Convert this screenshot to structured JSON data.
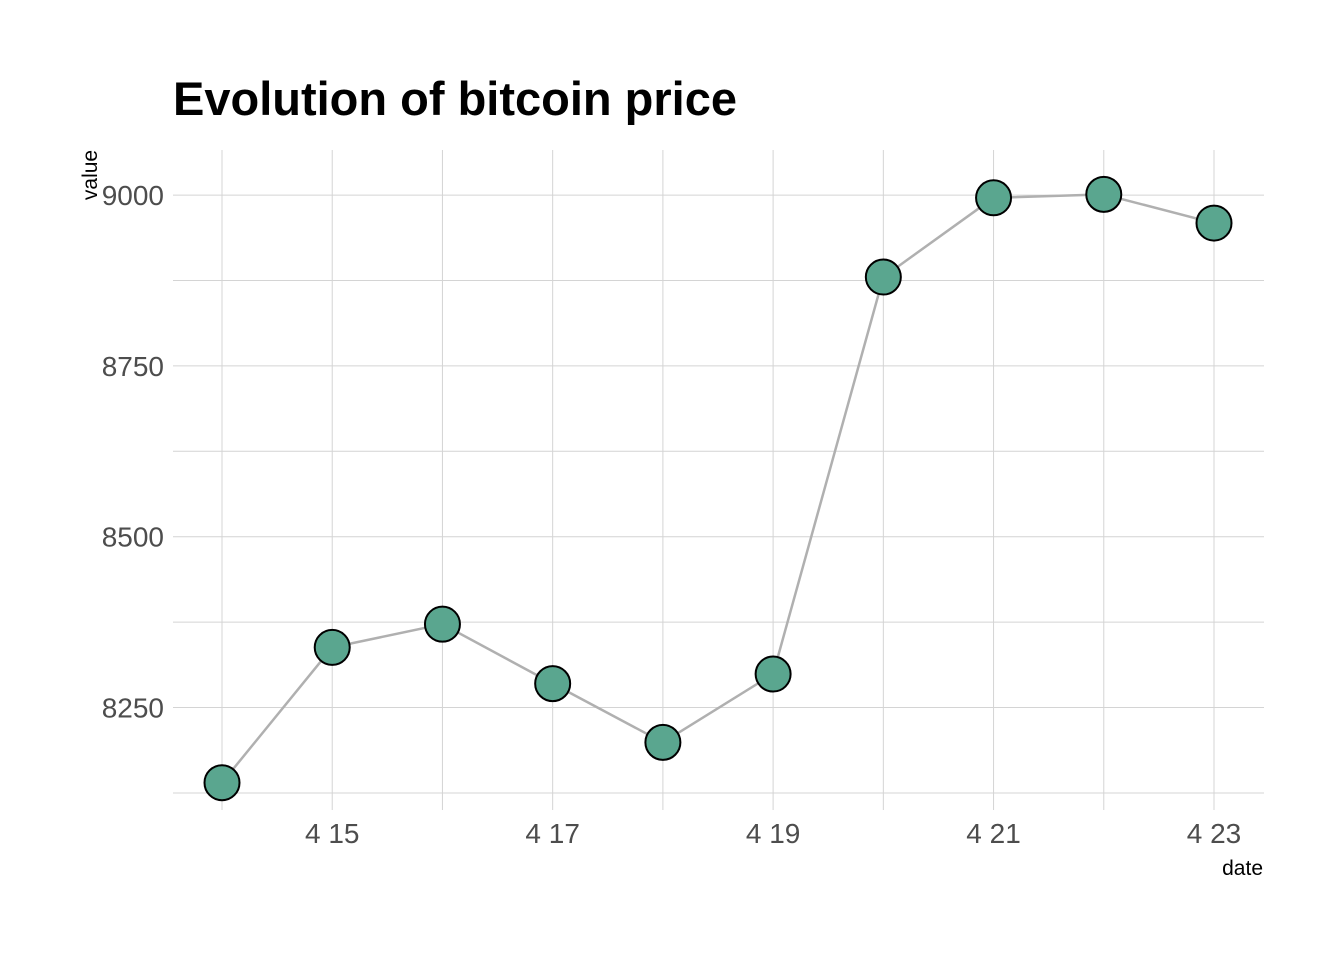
{
  "chart_data": {
    "type": "line",
    "title": "Evolution of bitcoin price",
    "xlabel": "date",
    "ylabel": "value",
    "x": [
      "2018-04-14",
      "2018-04-15",
      "2018-04-16",
      "2018-04-17",
      "2018-04-18",
      "2018-04-19",
      "2018-04-20",
      "2018-04-21",
      "2018-04-22",
      "2018-04-23"
    ],
    "values": [
      8140,
      8338,
      8372,
      8285,
      8199,
      8299,
      8880,
      8996,
      9001,
      8959
    ],
    "x_ticks": [
      {
        "date": "2018-04-15",
        "label": "4 15"
      },
      {
        "date": "2018-04-17",
        "label": "4 17"
      },
      {
        "date": "2018-04-19",
        "label": "4 19"
      },
      {
        "date": "2018-04-21",
        "label": "4 21"
      },
      {
        "date": "2018-04-23",
        "label": "4 23"
      }
    ],
    "y_ticks": [
      {
        "value": 8250,
        "label": "8250"
      },
      {
        "value": 8500,
        "label": "8500"
      },
      {
        "value": 8750,
        "label": "8750"
      },
      {
        "value": 9000,
        "label": "9000"
      }
    ],
    "ylim": [
      8122,
      9044
    ],
    "grid": true,
    "colors": {
      "line": "#b0b0b0",
      "point_fill": "#5aa68f",
      "point_stroke": "#000000",
      "grid": "#d4d4d4"
    }
  }
}
